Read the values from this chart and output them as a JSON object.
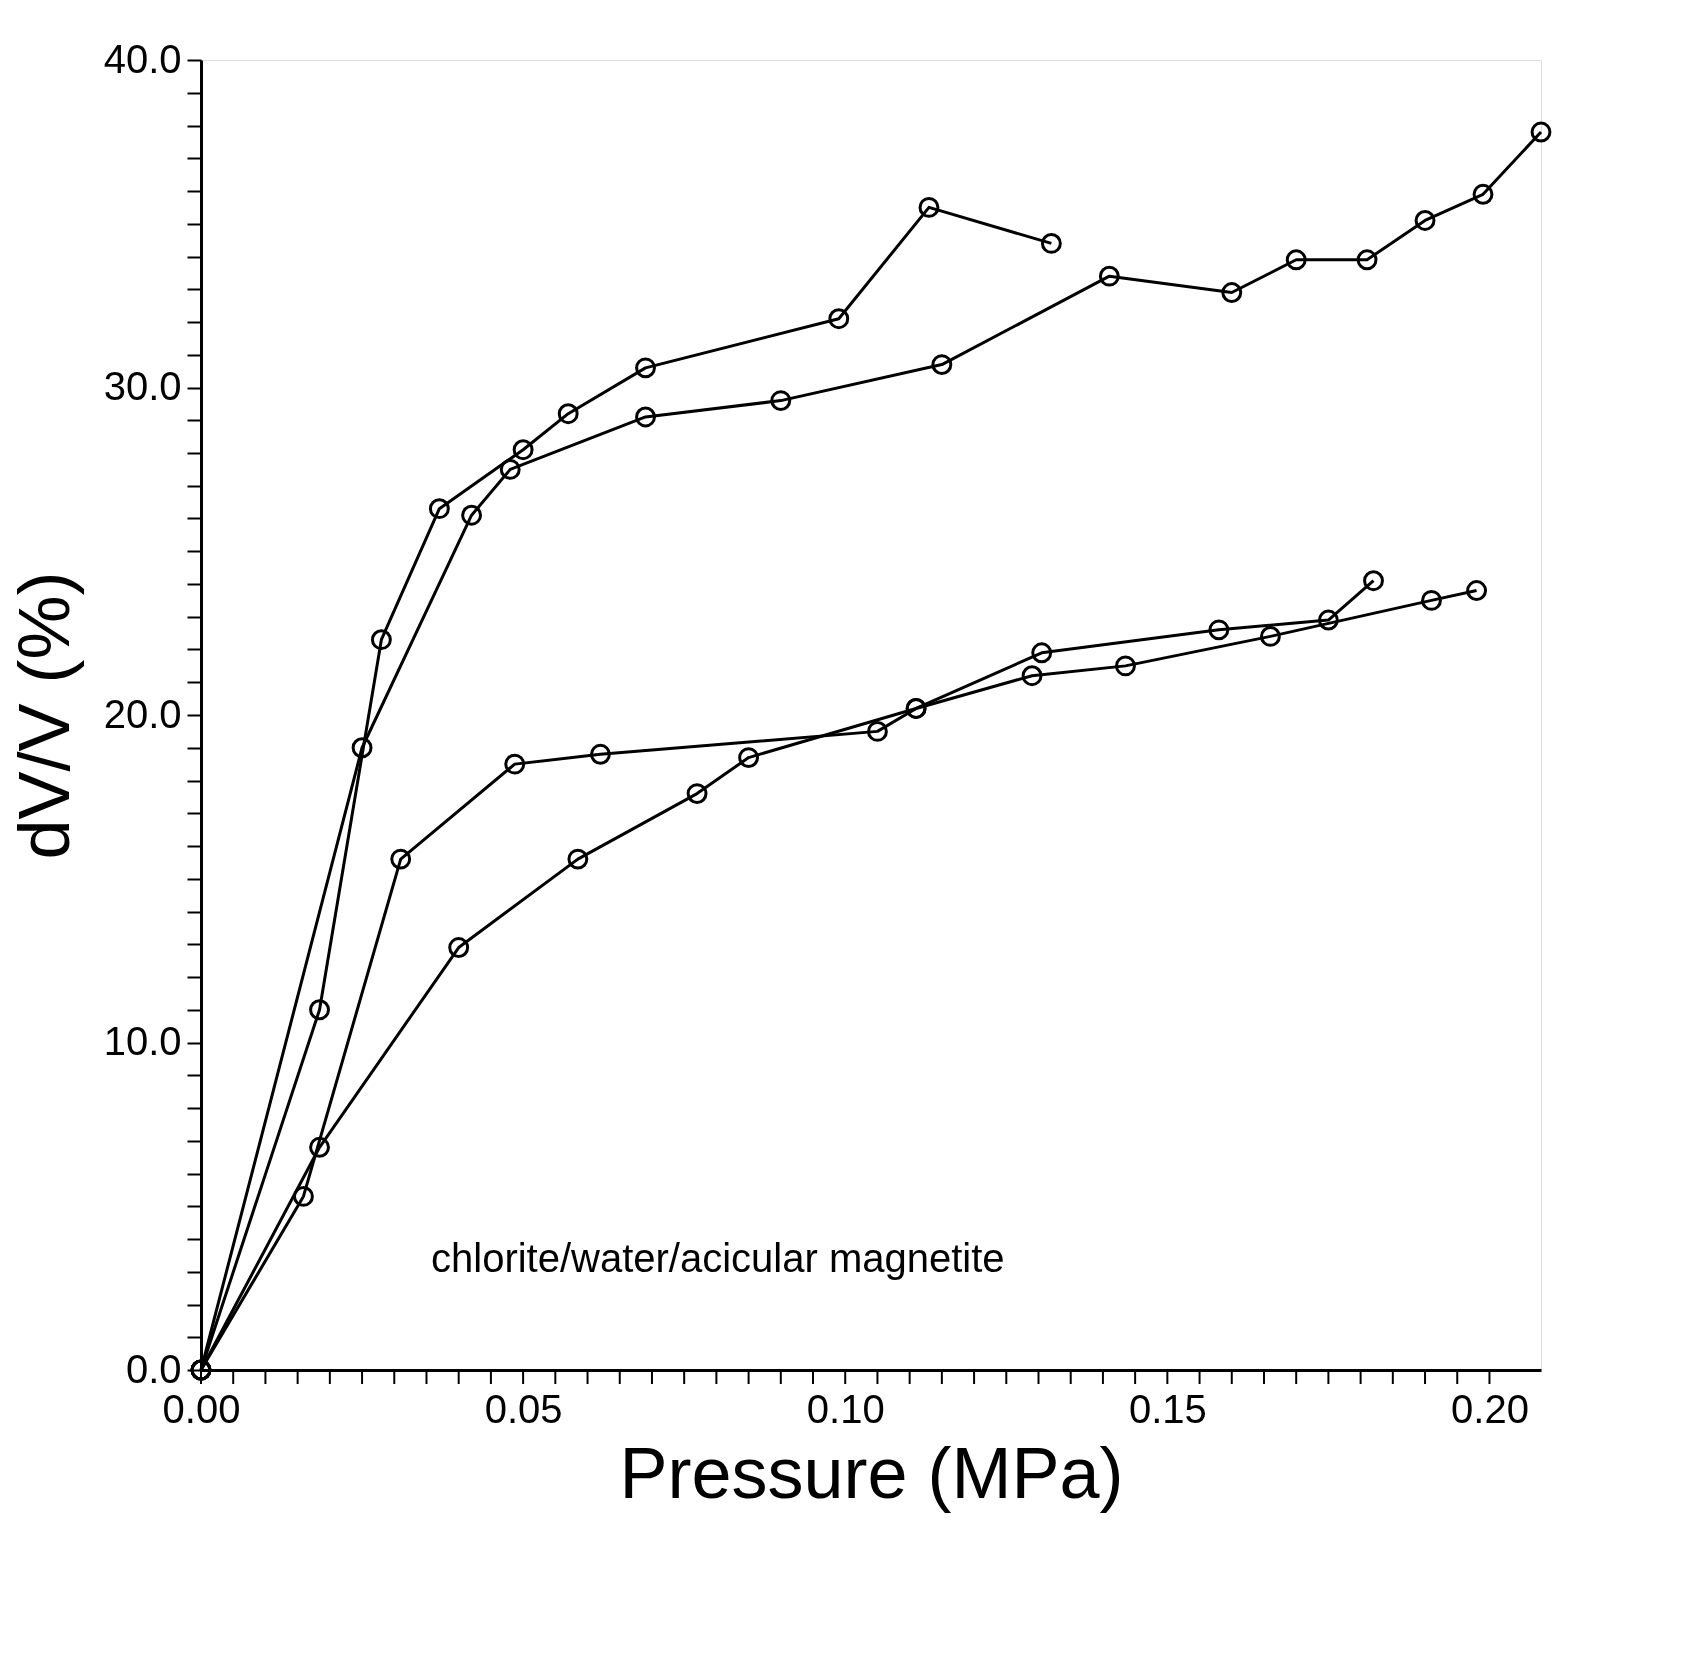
{
  "chart_data": {
    "type": "line",
    "xlabel": "Pressure (MPa)",
    "ylabel": "dV/V (%)",
    "annotations": [
      "chlorite/water/acicular magnetite"
    ],
    "series": [
      {
        "color": "#000000",
        "x": [
          0,
          0.0184,
          0.028,
          0.037,
          0.05,
          0.057,
          0.069,
          0.099,
          0.113,
          0.132
        ],
        "values": [
          0,
          11.0,
          22.3,
          26.3,
          28.1,
          29.2,
          30.6,
          32.1,
          35.5,
          34.4
        ]
      },
      {
        "color": "#000000",
        "x": [
          0,
          0.025,
          0.042,
          0.048,
          0.069,
          0.09,
          0.115,
          0.141,
          0.16,
          0.17,
          0.181,
          0.19,
          0.199,
          0.208
        ],
        "values": [
          0,
          19.0,
          26.1,
          27.5,
          29.1,
          29.6,
          30.7,
          33.4,
          32.9,
          33.9,
          33.9,
          35.1,
          35.9,
          37.8
        ]
      },
      {
        "color": "#000000",
        "x": [
          0,
          0.0159,
          0.031,
          0.0487,
          0.062,
          0.105,
          0.111,
          0.1305,
          0.158,
          0.175,
          0.182
        ],
        "values": [
          0,
          5.3,
          15.6,
          18.5,
          18.8,
          19.5,
          20.2,
          21.9,
          22.6,
          22.9,
          24.1
        ]
      },
      {
        "color": "#000000",
        "x": [
          0,
          0.0184,
          0.04,
          0.0585,
          0.077,
          0.085,
          0.111,
          0.129,
          0.1435,
          0.166,
          0.191,
          0.198
        ],
        "values": [
          0,
          6.8,
          12.9,
          15.6,
          17.6,
          18.7,
          20.2,
          21.2,
          21.5,
          22.4,
          23.5,
          23.8
        ]
      }
    ],
    "xlim": [
      0,
      0.208
    ],
    "ylim": [
      0,
      40
    ],
    "xticks": [
      {
        "value": 0,
        "label": "0.00"
      },
      {
        "value": 0.005,
        "label": null
      },
      {
        "value": 0.01,
        "label": null
      },
      {
        "value": 0.015,
        "label": null
      },
      {
        "value": 0.02,
        "label": null
      },
      {
        "value": 0.025,
        "label": null
      },
      {
        "value": 0.03,
        "label": null
      },
      {
        "value": 0.035,
        "label": null
      },
      {
        "value": 0.04,
        "label": null
      },
      {
        "value": 0.045,
        "label": null
      },
      {
        "value": 0.05,
        "label": "0.05"
      },
      {
        "value": 0.055,
        "label": null
      },
      {
        "value": 0.06,
        "label": null
      },
      {
        "value": 0.065,
        "label": null
      },
      {
        "value": 0.07,
        "label": null
      },
      {
        "value": 0.075,
        "label": null
      },
      {
        "value": 0.08,
        "label": null
      },
      {
        "value": 0.085,
        "label": null
      },
      {
        "value": 0.09,
        "label": null
      },
      {
        "value": 0.095,
        "label": null
      },
      {
        "value": 0.1,
        "label": "0.10"
      },
      {
        "value": 0.105,
        "label": null
      },
      {
        "value": 0.11,
        "label": null
      },
      {
        "value": 0.115,
        "label": null
      },
      {
        "value": 0.12,
        "label": null
      },
      {
        "value": 0.125,
        "label": null
      },
      {
        "value": 0.13,
        "label": null
      },
      {
        "value": 0.135,
        "label": null
      },
      {
        "value": 0.14,
        "label": null
      },
      {
        "value": 0.145,
        "label": null
      },
      {
        "value": 0.15,
        "label": "0.15"
      },
      {
        "value": 0.155,
        "label": null
      },
      {
        "value": 0.16,
        "label": null
      },
      {
        "value": 0.165,
        "label": null
      },
      {
        "value": 0.17,
        "label": null
      },
      {
        "value": 0.175,
        "label": null
      },
      {
        "value": 0.18,
        "label": null
      },
      {
        "value": 0.185,
        "label": null
      },
      {
        "value": 0.19,
        "label": null
      },
      {
        "value": 0.195,
        "label": null
      },
      {
        "value": 0.2,
        "label": "0.20"
      }
    ],
    "yticks": [
      {
        "value": 0,
        "label": "0.0"
      },
      {
        "value": 1,
        "label": null
      },
      {
        "value": 2,
        "label": null
      },
      {
        "value": 3,
        "label": null
      },
      {
        "value": 4,
        "label": null
      },
      {
        "value": 5,
        "label": null
      },
      {
        "value": 6,
        "label": null
      },
      {
        "value": 7,
        "label": null
      },
      {
        "value": 8,
        "label": null
      },
      {
        "value": 9,
        "label": null
      },
      {
        "value": 10,
        "label": "10.0"
      },
      {
        "value": 11,
        "label": null
      },
      {
        "value": 12,
        "label": null
      },
      {
        "value": 13,
        "label": null
      },
      {
        "value": 14,
        "label": null
      },
      {
        "value": 15,
        "label": null
      },
      {
        "value": 16,
        "label": null
      },
      {
        "value": 17,
        "label": null
      },
      {
        "value": 18,
        "label": null
      },
      {
        "value": 19,
        "label": null
      },
      {
        "value": 20,
        "label": "20.0"
      },
      {
        "value": 21,
        "label": null
      },
      {
        "value": 22,
        "label": null
      },
      {
        "value": 23,
        "label": null
      },
      {
        "value": 24,
        "label": null
      },
      {
        "value": 25,
        "label": null
      },
      {
        "value": 26,
        "label": null
      },
      {
        "value": 27,
        "label": null
      },
      {
        "value": 28,
        "label": null
      },
      {
        "value": 29,
        "label": null
      },
      {
        "value": 30,
        "label": "30.0"
      },
      {
        "value": 31,
        "label": null
      },
      {
        "value": 32,
        "label": null
      },
      {
        "value": 33,
        "label": null
      },
      {
        "value": 34,
        "label": null
      },
      {
        "value": 35,
        "label": null
      },
      {
        "value": 36,
        "label": null
      },
      {
        "value": 37,
        "label": null
      },
      {
        "value": 38,
        "label": null
      },
      {
        "value": 39,
        "label": null
      },
      {
        "value": 40,
        "label": "40.0"
      }
    ],
    "grid": false,
    "marker": "circle",
    "line_style": "solid"
  }
}
